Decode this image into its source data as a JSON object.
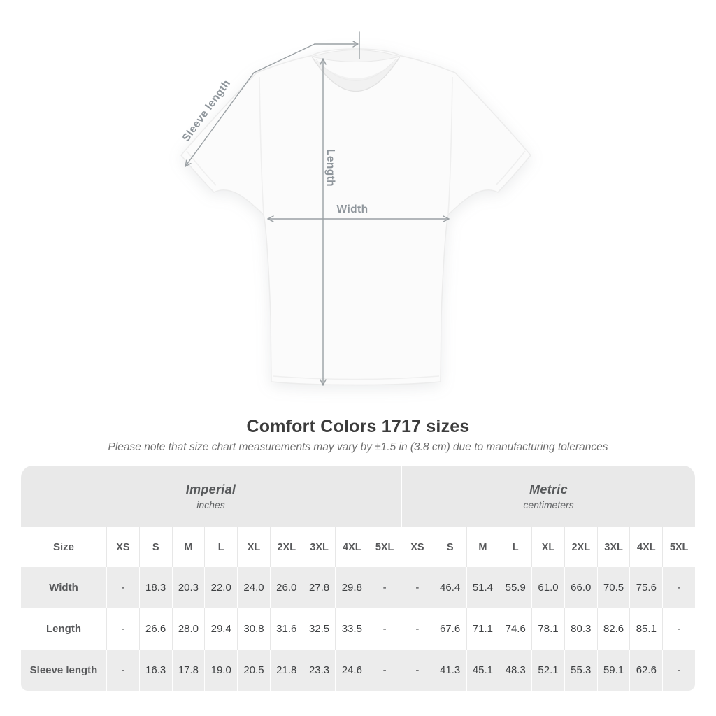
{
  "figure": {
    "labels": {
      "sleeve": "Sleeve length",
      "length": "Length",
      "width": "Width"
    }
  },
  "title": "Comfort Colors 1717 sizes",
  "subtitle": "Please note that size chart measurements may vary by ±1.5 in (3.8 cm) due to manufacturing tolerances",
  "chart_data": {
    "type": "table",
    "title": "Comfort Colors 1717 sizes",
    "subtitle": "Please note that size chart measurements may vary by ±1.5 in (3.8 cm) due to manufacturing tolerances",
    "row_header": "Size",
    "size_columns": [
      "XS",
      "S",
      "M",
      "L",
      "XL",
      "2XL",
      "3XL",
      "4XL",
      "5XL"
    ],
    "unit_groups": [
      {
        "label": "Imperial",
        "sublabel": "inches"
      },
      {
        "label": "Metric",
        "sublabel": "centimeters"
      }
    ],
    "rows": [
      {
        "label": "Width",
        "imperial": [
          "-",
          "18.3",
          "20.3",
          "22.0",
          "24.0",
          "26.0",
          "27.8",
          "29.8",
          "-"
        ],
        "metric": [
          "-",
          "46.4",
          "51.4",
          "55.9",
          "61.0",
          "66.0",
          "70.5",
          "75.6",
          "-"
        ]
      },
      {
        "label": "Length",
        "imperial": [
          "-",
          "26.6",
          "28.0",
          "29.4",
          "30.8",
          "31.6",
          "32.5",
          "33.5",
          "-"
        ],
        "metric": [
          "-",
          "67.6",
          "71.1",
          "74.6",
          "78.1",
          "80.3",
          "82.6",
          "85.1",
          "-"
        ]
      },
      {
        "label": "Sleeve length",
        "imperial": [
          "-",
          "16.3",
          "17.8",
          "19.0",
          "20.5",
          "21.8",
          "23.3",
          "24.6",
          "-"
        ],
        "metric": [
          "-",
          "41.3",
          "45.1",
          "48.3",
          "52.1",
          "55.3",
          "59.1",
          "62.6",
          "-"
        ]
      }
    ]
  },
  "colors": {
    "annotation_gray": "#9aa0a4",
    "band_gray": "#e9e9e9",
    "row_gray": "#ececec",
    "title_text": "#3c3c3c"
  }
}
